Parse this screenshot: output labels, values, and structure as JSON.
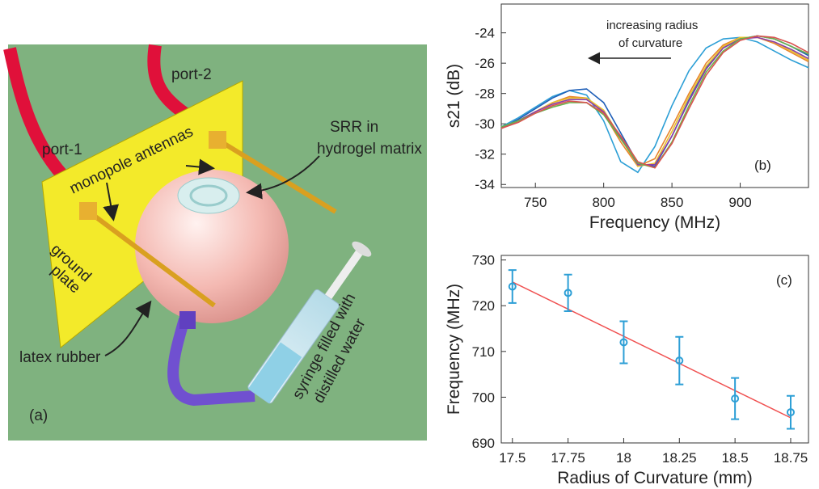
{
  "chart_data": [
    {
      "type": "line",
      "xlabel": "Frequency (MHz)",
      "ylabel": "s21 (dB)",
      "panel_label": "(b)",
      "annotation": [
        "increasing radius",
        "of curvature"
      ],
      "x": [
        725,
        737.5,
        750,
        762.5,
        775,
        787.5,
        800,
        812.5,
        825,
        837.5,
        850,
        862.5,
        875,
        887.5,
        900,
        912.5,
        925,
        937.5,
        950
      ],
      "xlim": [
        725,
        950
      ],
      "xticks": [
        750,
        800,
        850,
        900
      ],
      "ylim": [
        -34.2,
        -22.1
      ],
      "yticks": [
        -34,
        -32,
        -30,
        -28,
        -26,
        -24
      ],
      "series": [
        {
          "color": "#2d9fd6",
          "values": [
            -30.2,
            -29.6,
            -28.9,
            -28.2,
            -27.8,
            -28.1,
            -29.8,
            -32.5,
            -33.2,
            -31.5,
            -28.8,
            -26.5,
            -25.0,
            -24.4,
            -24.3,
            -24.6,
            -25.2,
            -25.8,
            -26.3
          ]
        },
        {
          "color": "#1f5fb8",
          "values": [
            -30.3,
            -29.7,
            -29.0,
            -28.3,
            -27.8,
            -27.7,
            -28.6,
            -30.6,
            -32.6,
            -32.8,
            -30.8,
            -28.4,
            -26.3,
            -25.0,
            -24.4,
            -24.2,
            -24.4,
            -24.9,
            -25.5
          ]
        },
        {
          "color": "#e8842b",
          "values": [
            -30.3,
            -29.8,
            -29.2,
            -28.6,
            -28.2,
            -28.3,
            -29.3,
            -31.2,
            -32.8,
            -32.3,
            -30.2,
            -28.0,
            -26.0,
            -24.8,
            -24.3,
            -24.3,
            -24.7,
            -25.3,
            -25.9
          ]
        },
        {
          "color": "#e8c12b",
          "values": [
            -30.3,
            -29.8,
            -29.2,
            -28.6,
            -28.3,
            -28.3,
            -29.1,
            -30.9,
            -32.8,
            -32.6,
            -30.5,
            -28.2,
            -26.2,
            -24.9,
            -24.3,
            -24.3,
            -24.6,
            -25.2,
            -25.8
          ]
        },
        {
          "color": "#8a3fa8",
          "values": [
            -30.3,
            -29.8,
            -29.2,
            -28.7,
            -28.4,
            -28.4,
            -29.2,
            -30.9,
            -32.7,
            -32.7,
            -30.8,
            -28.5,
            -26.4,
            -25.0,
            -24.4,
            -24.3,
            -24.6,
            -25.1,
            -25.7
          ]
        },
        {
          "color": "#6ab04c",
          "values": [
            -30.2,
            -29.8,
            -29.3,
            -28.9,
            -28.6,
            -28.6,
            -29.4,
            -31.0,
            -32.6,
            -32.9,
            -31.2,
            -28.8,
            -26.6,
            -25.2,
            -24.4,
            -24.2,
            -24.4,
            -24.9,
            -25.4
          ]
        },
        {
          "color": "#d9534f",
          "values": [
            -30.3,
            -29.9,
            -29.3,
            -28.8,
            -28.5,
            -28.6,
            -29.3,
            -30.8,
            -32.5,
            -32.9,
            -31.3,
            -29.0,
            -26.8,
            -25.3,
            -24.5,
            -24.2,
            -24.3,
            -24.7,
            -25.3
          ]
        }
      ]
    },
    {
      "type": "scatter",
      "xlabel": "Radius of Curvature (mm)",
      "ylabel": "Frequency (MHz)",
      "panel_label": "(c)",
      "x": [
        17.5,
        17.75,
        18,
        18.25,
        18.5,
        18.75
      ],
      "values": [
        724.2,
        722.8,
        712,
        708,
        699.7,
        696.7
      ],
      "errors": [
        3.6,
        4,
        4.6,
        5.2,
        4.5,
        3.6
      ],
      "color": "#2d9fd6",
      "fit": {
        "x": [
          17.5,
          18.75
        ],
        "values": [
          725.2,
          695.5
        ],
        "color": "#f05050"
      },
      "xlim": [
        17.45,
        18.83
      ],
      "xticks": [
        17.5,
        17.75,
        18,
        18.25,
        18.5,
        18.75
      ],
      "ylim": [
        690,
        731
      ],
      "yticks": [
        690,
        700,
        710,
        720,
        730
      ]
    }
  ],
  "illustration": {
    "panel_label": "(a)",
    "port_1": "port-1",
    "port_2": "port-2",
    "antennas": "monopole antennas",
    "srr": [
      "SRR in",
      "hydrogel matrix"
    ],
    "ground": [
      "ground",
      "plate"
    ],
    "latex": "latex rubber",
    "syringe": [
      "syringe filled with",
      "distilled water"
    ]
  }
}
